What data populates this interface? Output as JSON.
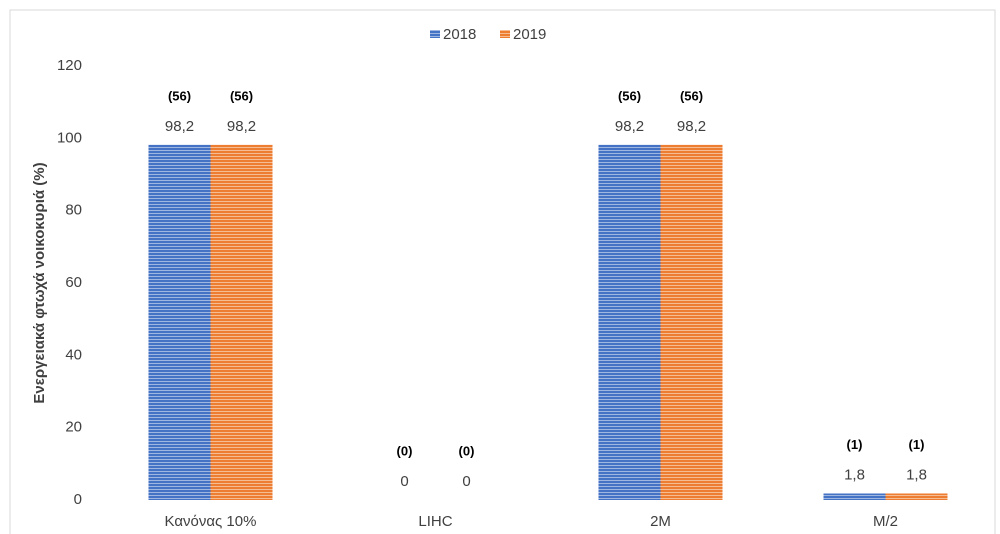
{
  "chart_data": {
    "type": "bar",
    "y_label": "Ενεργειακά φτωχά νοικοκυριά (%)",
    "categories": [
      "Κανόνας 10%",
      "LIHC",
      "2M",
      "M/2"
    ],
    "series": [
      {
        "name": "2018",
        "color": "#4472c4",
        "values": [
          98.2,
          0,
          98.2,
          1.8
        ],
        "value_labels": [
          "98,2",
          "0",
          "98,2",
          "1,8"
        ],
        "annotations": [
          "(56)",
          "(0)",
          "(56)",
          "(1)"
        ]
      },
      {
        "name": "2019",
        "color": "#ed7d31",
        "values": [
          98.2,
          0,
          98.2,
          1.8
        ],
        "value_labels": [
          "98,2",
          "0",
          "98,2",
          "1,8"
        ],
        "annotations": [
          "(56)",
          "(0)",
          "(56)",
          "(1)"
        ]
      }
    ],
    "ylim": [
      0,
      120
    ],
    "yticks": [
      0,
      20,
      40,
      60,
      80,
      100,
      120
    ],
    "grid": false,
    "legend": "top"
  }
}
